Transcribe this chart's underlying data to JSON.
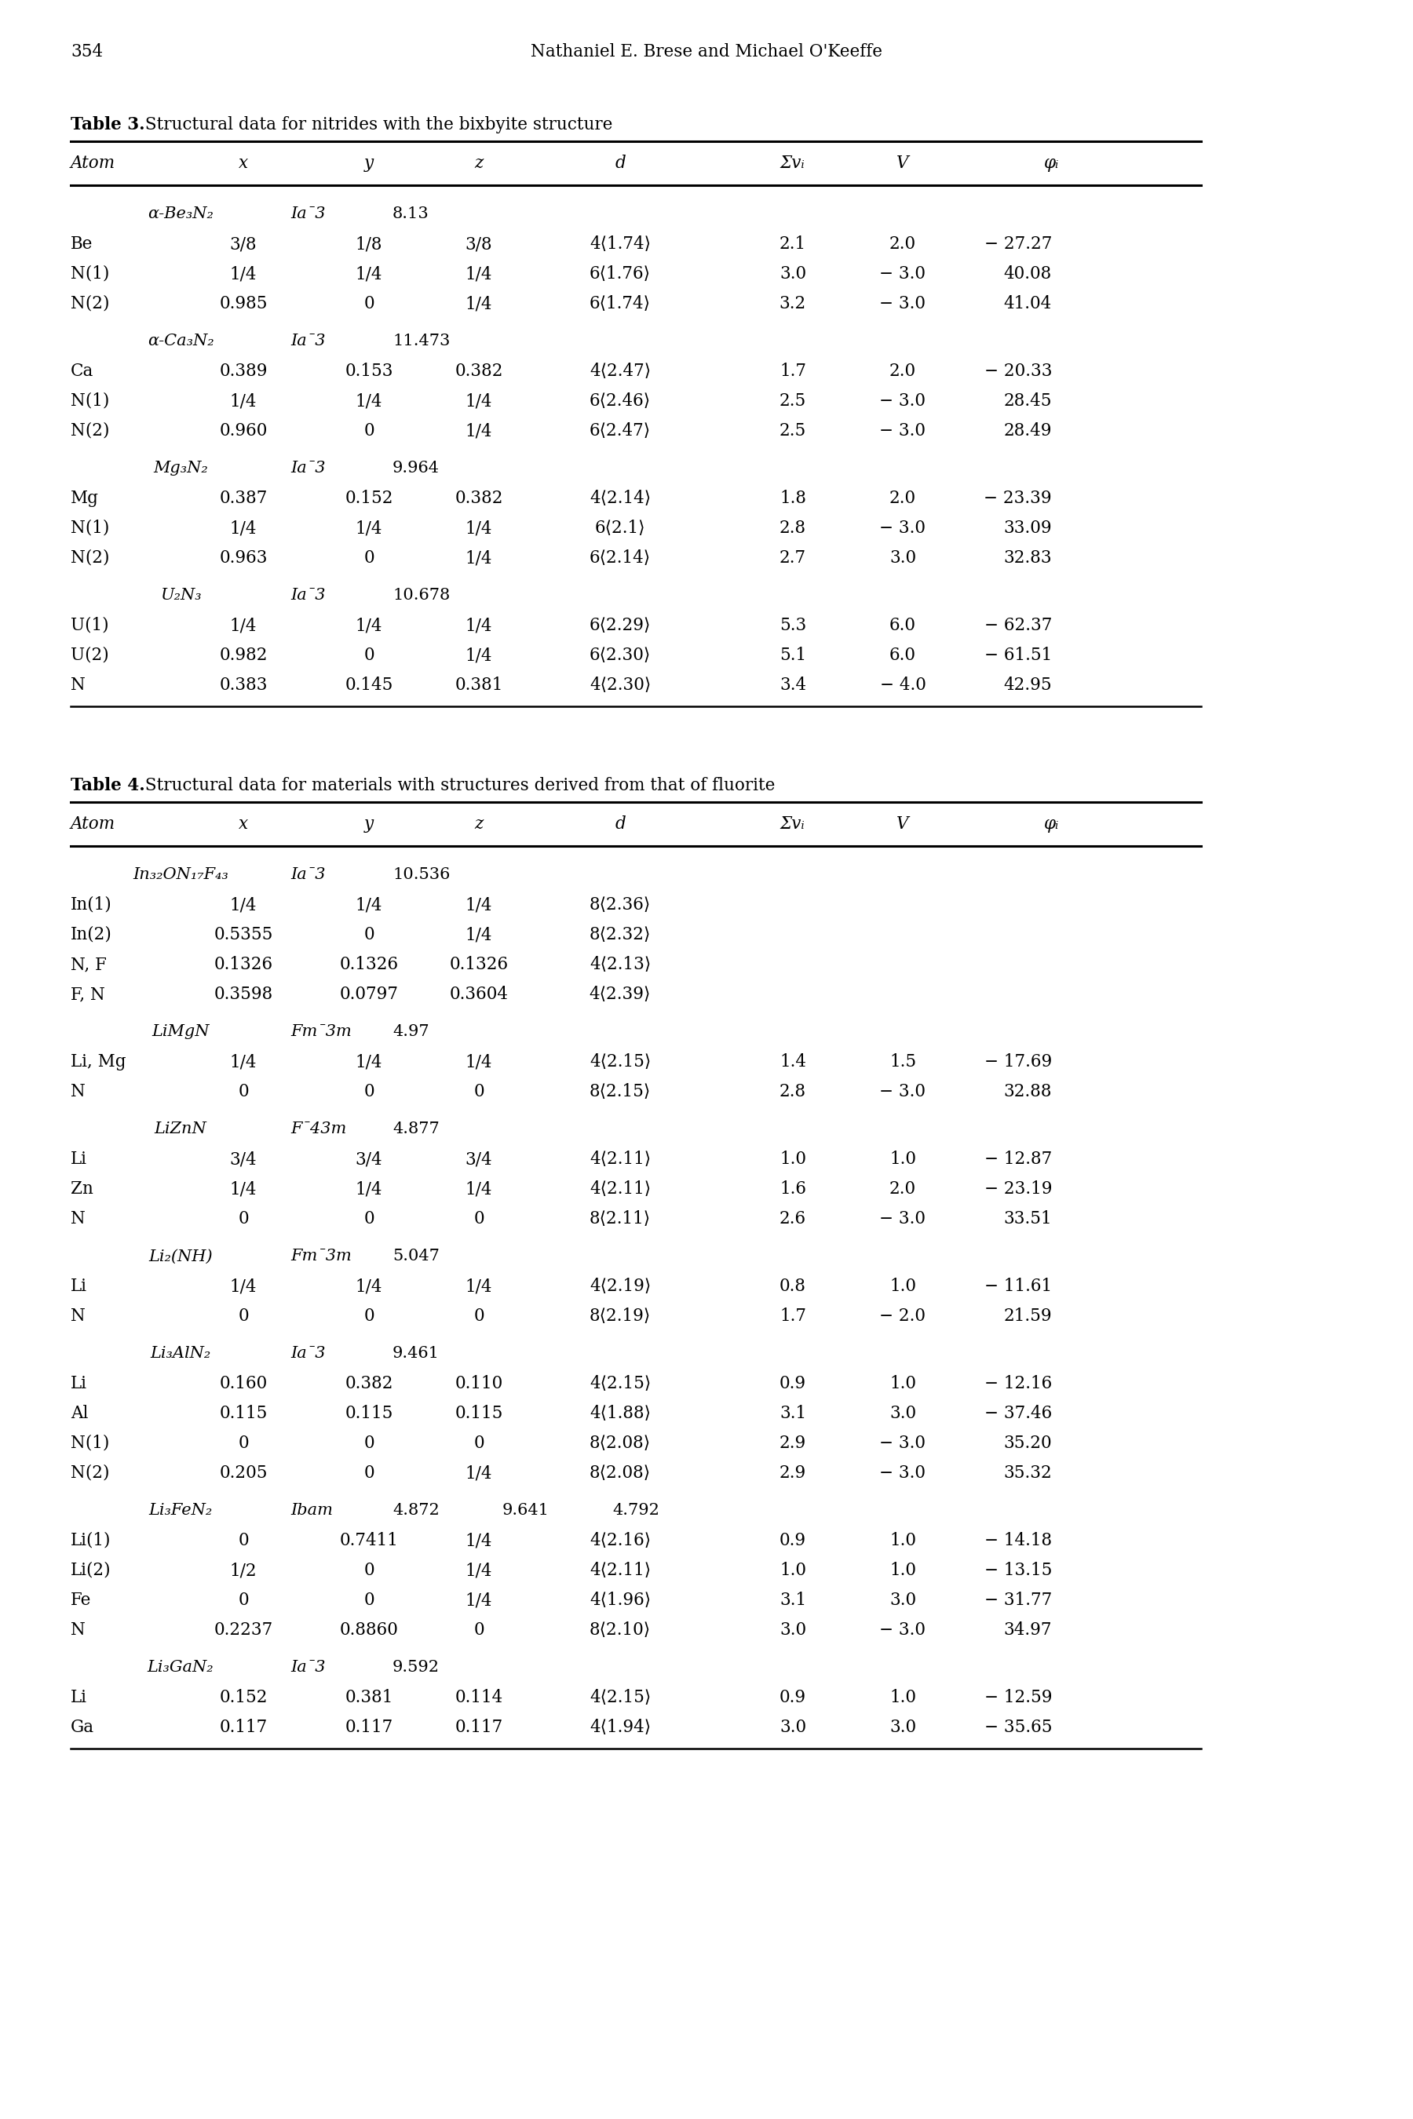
{
  "page_number": "354",
  "page_header": "Nathaniel E. Brese and Michael O'Keeffe",
  "table3_title": "Table 3.",
  "table3_subtitle": " Structural data for nitrides with the bixbyite structure",
  "table4_title": "Table 4.",
  "table4_subtitle": " Structural data for materials with structures derived from that of fluorite",
  "col_headers": [
    "Atom",
    "x",
    "y",
    "z",
    "d",
    "Σvᵢ",
    "V",
    "φᵢ"
  ],
  "table3_rows": [
    {
      "type": "group",
      "atom": "α-Be₃N₂",
      "sg": "Ia¯3",
      "a": "8.13"
    },
    {
      "type": "data",
      "atom": "Be",
      "x": "3/8",
      "y": "1/8",
      "z": "3/8",
      "d": "4⟨1.74⟩",
      "sv": "2.1",
      "V": "2.0",
      "phi": "− 27.27"
    },
    {
      "type": "data",
      "atom": "N(1)",
      "x": "1/4",
      "y": "1/4",
      "z": "1/4",
      "d": "6⟨1.76⟩",
      "sv": "3.0",
      "V": "− 3.0",
      "phi": "40.08"
    },
    {
      "type": "data",
      "atom": "N(2)",
      "x": "0.985",
      "y": "0",
      "z": "1/4",
      "d": "6⟨1.74⟩",
      "sv": "3.2",
      "V": "− 3.0",
      "phi": "41.04"
    },
    {
      "type": "group",
      "atom": "α-Ca₃N₂",
      "sg": "Ia¯3",
      "a": "11.473"
    },
    {
      "type": "data",
      "atom": "Ca",
      "x": "0.389",
      "y": "0.153",
      "z": "0.382",
      "d": "4⟨2.47⟩",
      "sv": "1.7",
      "V": "2.0",
      "phi": "− 20.33"
    },
    {
      "type": "data",
      "atom": "N(1)",
      "x": "1/4",
      "y": "1/4",
      "z": "1/4",
      "d": "6⟨2.46⟩",
      "sv": "2.5",
      "V": "− 3.0",
      "phi": "28.45"
    },
    {
      "type": "data",
      "atom": "N(2)",
      "x": "0.960",
      "y": "0",
      "z": "1/4",
      "d": "6⟨2.47⟩",
      "sv": "2.5",
      "V": "− 3.0",
      "phi": "28.49"
    },
    {
      "type": "group",
      "atom": "Mg₃N₂",
      "sg": "Ia¯3",
      "a": "9.964"
    },
    {
      "type": "data",
      "atom": "Mg",
      "x": "0.387",
      "y": "0.152",
      "z": "0.382",
      "d": "4⟨2.14⟩",
      "sv": "1.8",
      "V": "2.0",
      "phi": "− 23.39"
    },
    {
      "type": "data",
      "atom": "N(1)",
      "x": "1/4",
      "y": "1/4",
      "z": "1/4",
      "d": "6⟨2.1⟩",
      "sv": "2.8",
      "V": "− 3.0",
      "phi": "33.09"
    },
    {
      "type": "data",
      "atom": "N(2)",
      "x": "0.963",
      "y": "0",
      "z": "1/4",
      "d": "6⟨2.14⟩",
      "sv": "2.7",
      "V": "3.0",
      "phi": "32.83"
    },
    {
      "type": "group",
      "atom": "U₂N₃",
      "sg": "Ia¯3",
      "a": "10.678"
    },
    {
      "type": "data",
      "atom": "U(1)",
      "x": "1/4",
      "y": "1/4",
      "z": "1/4",
      "d": "6⟨2.29⟩",
      "sv": "5.3",
      "V": "6.0",
      "phi": "− 62.37"
    },
    {
      "type": "data",
      "atom": "U(2)",
      "x": "0.982",
      "y": "0",
      "z": "1/4",
      "d": "6⟨2.30⟩",
      "sv": "5.1",
      "V": "6.0",
      "phi": "− 61.51"
    },
    {
      "type": "data",
      "atom": "N",
      "x": "0.383",
      "y": "0.145",
      "z": "0.381",
      "d": "4⟨2.30⟩",
      "sv": "3.4",
      "V": "− 4.0",
      "phi": "42.95"
    }
  ],
  "table4_rows": [
    {
      "type": "group",
      "atom": "In₃₂ON₁₇F₄₃",
      "sg": "Ia¯3",
      "a": "10.536"
    },
    {
      "type": "data",
      "atom": "In(1)",
      "x": "1/4",
      "y": "1/4",
      "z": "1/4",
      "d": "8⟨2.36⟩",
      "sv": "",
      "V": "",
      "phi": ""
    },
    {
      "type": "data",
      "atom": "In(2)",
      "x": "0.5355",
      "y": "0",
      "z": "1/4",
      "d": "8⟨2.32⟩",
      "sv": "",
      "V": "",
      "phi": ""
    },
    {
      "type": "data",
      "atom": "N, F",
      "x": "0.1326",
      "y": "0.1326",
      "z": "0.1326",
      "d": "4⟨2.13⟩",
      "sv": "",
      "V": "",
      "phi": ""
    },
    {
      "type": "data",
      "atom": "F, N",
      "x": "0.3598",
      "y": "0.0797",
      "z": "0.3604",
      "d": "4⟨2.39⟩",
      "sv": "",
      "V": "",
      "phi": ""
    },
    {
      "type": "group",
      "atom": "LiMgN",
      "sg": "Fm¯3m",
      "a": "4.97"
    },
    {
      "type": "data",
      "atom": "Li, Mg",
      "x": "1/4",
      "y": "1/4",
      "z": "1/4",
      "d": "4⟨2.15⟩",
      "sv": "1.4",
      "V": "1.5",
      "phi": "− 17.69"
    },
    {
      "type": "data",
      "atom": "N",
      "x": "0",
      "y": "0",
      "z": "0",
      "d": "8⟨2.15⟩",
      "sv": "2.8",
      "V": "− 3.0",
      "phi": "32.88"
    },
    {
      "type": "group",
      "atom": "LiZnN",
      "sg": "F¯43m",
      "a": "4.877"
    },
    {
      "type": "data",
      "atom": "Li",
      "x": "3/4",
      "y": "3/4",
      "z": "3/4",
      "d": "4⟨2.11⟩",
      "sv": "1.0",
      "V": "1.0",
      "phi": "− 12.87"
    },
    {
      "type": "data",
      "atom": "Zn",
      "x": "1/4",
      "y": "1/4",
      "z": "1/4",
      "d": "4⟨2.11⟩",
      "sv": "1.6",
      "V": "2.0",
      "phi": "− 23.19"
    },
    {
      "type": "data",
      "atom": "N",
      "x": "0",
      "y": "0",
      "z": "0",
      "d": "8⟨2.11⟩",
      "sv": "2.6",
      "V": "− 3.0",
      "phi": "33.51"
    },
    {
      "type": "group",
      "atom": "Li₂(NH)",
      "sg": "Fm¯3m",
      "a": "5.047"
    },
    {
      "type": "data",
      "atom": "Li",
      "x": "1/4",
      "y": "1/4",
      "z": "1/4",
      "d": "4⟨2.19⟩",
      "sv": "0.8",
      "V": "1.0",
      "phi": "− 11.61"
    },
    {
      "type": "data",
      "atom": "N",
      "x": "0",
      "y": "0",
      "z": "0",
      "d": "8⟨2.19⟩",
      "sv": "1.7",
      "V": "− 2.0",
      "phi": "21.59"
    },
    {
      "type": "group",
      "atom": "Li₃AlN₂",
      "sg": "Ia¯3",
      "a": "9.461"
    },
    {
      "type": "data",
      "atom": "Li",
      "x": "0.160",
      "y": "0.382",
      "z": "0.110",
      "d": "4⟨2.15⟩",
      "sv": "0.9",
      "V": "1.0",
      "phi": "− 12.16"
    },
    {
      "type": "data",
      "atom": "Al",
      "x": "0.115",
      "y": "0.115",
      "z": "0.115",
      "d": "4⟨1.88⟩",
      "sv": "3.1",
      "V": "3.0",
      "phi": "− 37.46"
    },
    {
      "type": "data",
      "atom": "N(1)",
      "x": "0",
      "y": "0",
      "z": "0",
      "d": "8⟨2.08⟩",
      "sv": "2.9",
      "V": "− 3.0",
      "phi": "35.20"
    },
    {
      "type": "data",
      "atom": "N(2)",
      "x": "0.205",
      "y": "0",
      "z": "1/4",
      "d": "8⟨2.08⟩",
      "sv": "2.9",
      "V": "− 3.0",
      "phi": "35.32"
    },
    {
      "type": "group",
      "atom": "Li₃FeN₂",
      "sg": "Ibam",
      "a": "4.872",
      "b": "9.641",
      "c": "4.792"
    },
    {
      "type": "data",
      "atom": "Li(1)",
      "x": "0",
      "y": "0.7411",
      "z": "1/4",
      "d": "4⟨2.16⟩",
      "sv": "0.9",
      "V": "1.0",
      "phi": "− 14.18"
    },
    {
      "type": "data",
      "atom": "Li(2)",
      "x": "1/2",
      "y": "0",
      "z": "1/4",
      "d": "4⟨2.11⟩",
      "sv": "1.0",
      "V": "1.0",
      "phi": "− 13.15"
    },
    {
      "type": "data",
      "atom": "Fe",
      "x": "0",
      "y": "0",
      "z": "1/4",
      "d": "4⟨1.96⟩",
      "sv": "3.1",
      "V": "3.0",
      "phi": "− 31.77"
    },
    {
      "type": "data",
      "atom": "N",
      "x": "0.2237",
      "y": "0.8860",
      "z": "0",
      "d": "8⟨2.10⟩",
      "sv": "3.0",
      "V": "− 3.0",
      "phi": "34.97"
    },
    {
      "type": "group",
      "atom": "Li₃GaN₂",
      "sg": "Ia¯3",
      "a": "9.592"
    },
    {
      "type": "data",
      "atom": "Li",
      "x": "0.152",
      "y": "0.381",
      "z": "0.114",
      "d": "4⟨2.15⟩",
      "sv": "0.9",
      "V": "1.0",
      "phi": "− 12.59"
    },
    {
      "type": "data",
      "atom": "Ga",
      "x": "0.117",
      "y": "0.117",
      "z": "0.117",
      "d": "4⟨1.94⟩",
      "sv": "3.0",
      "V": "3.0",
      "phi": "− 35.65"
    }
  ]
}
